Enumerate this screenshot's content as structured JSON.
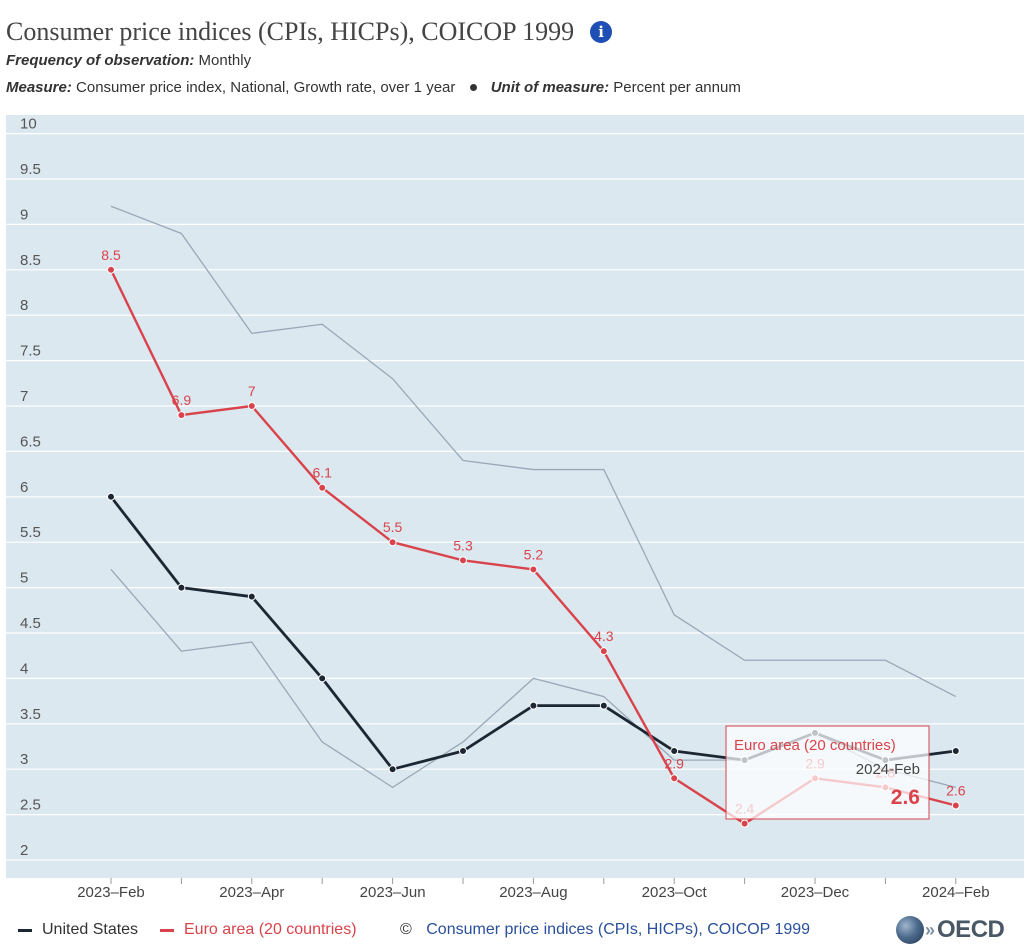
{
  "header": {
    "title": "Consumer price indices (CPIs, HICPs), COICOP 1999",
    "info_icon": "info-icon",
    "frequency_label": "Frequency of observation:",
    "frequency_value": "Monthly",
    "measure_label": "Measure:",
    "measure_value": "Consumer price index, National, Growth rate, over 1 year",
    "unit_label": "Unit of measure:",
    "unit_value": "Percent per annum"
  },
  "tooltip": {
    "series": "Euro area (20 countries)",
    "period": "2024-Feb",
    "value": "2.6"
  },
  "footer": {
    "copyright": "©",
    "source_link": "Consumer price indices (CPIs, HICPs), COICOP 1999",
    "logo_text": "OECD",
    "logo_icon": "oecd-globe-icon"
  },
  "colors": {
    "plot_bg": "#dce8f0",
    "us": "#1c2733",
    "euro": "#d9434b",
    "band": "#98a8b6",
    "grid": "#ffffff",
    "accent": "#1f4fb5"
  },
  "chart_data": {
    "type": "line",
    "x": [
      "2023-Feb",
      "2023-Mar",
      "2023-Apr",
      "2023-May",
      "2023-Jun",
      "2023-Jul",
      "2023-Aug",
      "2023-Sep",
      "2023-Oct",
      "2023-Nov",
      "2023-Dec",
      "2024-Jan",
      "2024-Feb"
    ],
    "x_tick_labels": [
      "2023–Feb",
      "2023–Apr",
      "2023–Jun",
      "2023–Aug",
      "2023–Oct",
      "2023–Dec",
      "2024–Feb"
    ],
    "x_tick_indices": [
      0,
      2,
      4,
      6,
      8,
      10,
      12
    ],
    "ylim": [
      2,
      10
    ],
    "y_ticks": [
      2,
      2.5,
      3,
      3.5,
      4,
      4.5,
      5,
      5.5,
      6,
      6.5,
      7,
      7.5,
      8,
      8.5,
      9,
      9.5,
      10
    ],
    "y_tick_labels": [
      "2",
      "2.5",
      "3",
      "3.5",
      "4",
      "4.5",
      "5",
      "5.5",
      "6",
      "6.5",
      "7",
      "7.5",
      "8",
      "8.5",
      "9",
      "9.5",
      "10"
    ],
    "grid": true,
    "series": [
      {
        "name": "United States",
        "color": "#1c2733",
        "values": [
          6.0,
          5.0,
          4.9,
          4.0,
          3.0,
          3.2,
          3.7,
          3.7,
          3.2,
          3.1,
          3.4,
          3.1,
          3.2
        ]
      },
      {
        "name": "Euro area (20 countries)",
        "color": "#d9434b",
        "values": [
          8.5,
          6.9,
          7.0,
          6.1,
          5.5,
          5.3,
          5.2,
          4.3,
          2.9,
          2.4,
          2.9,
          2.8,
          2.6
        ],
        "labels": [
          "8.5",
          "6.9",
          "7",
          "6.1",
          "5.5",
          "5.3",
          "5.2",
          "4.3",
          "2.9",
          "2.4",
          "2.9",
          "2.8",
          "2.6"
        ]
      }
    ],
    "band_upper": [
      9.2,
      8.9,
      7.8,
      7.9,
      7.3,
      6.4,
      6.3,
      6.3,
      4.7,
      4.2,
      4.2,
      4.2,
      3.8
    ],
    "band_lower": [
      5.2,
      4.3,
      4.4,
      3.3,
      2.8,
      3.3,
      4.0,
      3.8,
      3.1,
      3.1,
      3.4,
      3.0,
      2.8
    ]
  }
}
